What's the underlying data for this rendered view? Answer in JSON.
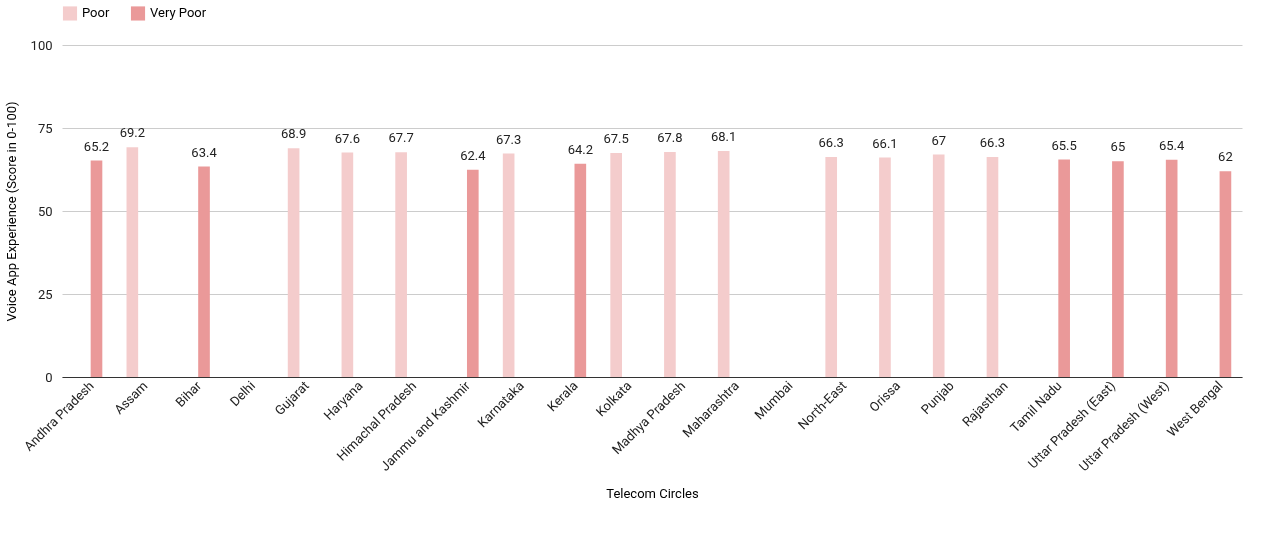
{
  "chart_data": {
    "type": "bar",
    "xlabel": "Telecom Circles",
    "ylabel": "Voice App Experience (Score in 0-100)",
    "categories": [
      "Andhra Pradesh",
      "Assam",
      "Bihar",
      "Delhi",
      "Gujarat",
      "Haryana",
      "Himachal Pradesh",
      "Jammu and Kashmir",
      "Karnataka",
      "Kerala",
      "Kolkata",
      "Madhya Pradesh",
      "Maharashtra",
      "Mumbai",
      "North-East",
      "Orissa",
      "Punjab",
      "Rajasthan",
      "Tamil Nadu",
      "Uttar Pradesh (East)",
      "Uttar Pradesh (West)",
      "West Bengal"
    ],
    "series": [
      {
        "name": "Poor",
        "color": "#f4cccc",
        "values": [
          null,
          69.2,
          null,
          null,
          68.9,
          67.6,
          67.7,
          null,
          67.3,
          null,
          67.5,
          67.8,
          68.1,
          null,
          66.3,
          66.1,
          67,
          66.3,
          null,
          null,
          null,
          null
        ]
      },
      {
        "name": "Very Poor",
        "color": "#ea9999",
        "values": [
          65.2,
          null,
          63.4,
          null,
          null,
          null,
          null,
          62.4,
          null,
          64.2,
          null,
          null,
          null,
          null,
          null,
          null,
          null,
          null,
          65.5,
          65,
          65.4,
          62
        ]
      }
    ],
    "ylim": [
      0,
      100
    ],
    "yticks": [
      0,
      25,
      50,
      75,
      100
    ],
    "grid": "y",
    "legend": "top",
    "data_labels": true
  }
}
